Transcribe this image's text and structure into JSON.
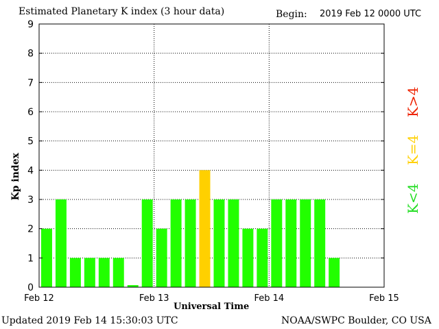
{
  "header": {
    "title": "Estimated Planetary K index (3 hour data)",
    "begin_label": "Begin:",
    "begin_value": "2019 Feb 12 0000 UTC"
  },
  "footer": {
    "updated": "Updated 2019 Feb 14 15:30:03 UTC",
    "credit": "NOAA/SWPC Boulder, CO USA"
  },
  "legend": {
    "low": "K<4",
    "equal": "K=4",
    "high": "K>4"
  },
  "colors": {
    "low": "#22ff00",
    "equal": "#ffd000",
    "high": "#ee2200"
  },
  "chart_data": {
    "type": "bar",
    "ylabel": "Kp index",
    "xlabel": "Universal Time",
    "ylim": [
      0,
      9
    ],
    "yticks": [
      "0",
      "1",
      "2",
      "3",
      "4",
      "5",
      "6",
      "7",
      "8",
      "9"
    ],
    "xticks": [
      "Feb 12",
      "Feb 13",
      "Feb 14",
      "Feb 15"
    ],
    "intervals_total": 24,
    "grid": true,
    "values": [
      2,
      3,
      1,
      1,
      1,
      1,
      0.07,
      3,
      2,
      3,
      3,
      4,
      3,
      3,
      2,
      2,
      3,
      3,
      3,
      3,
      1
    ]
  }
}
